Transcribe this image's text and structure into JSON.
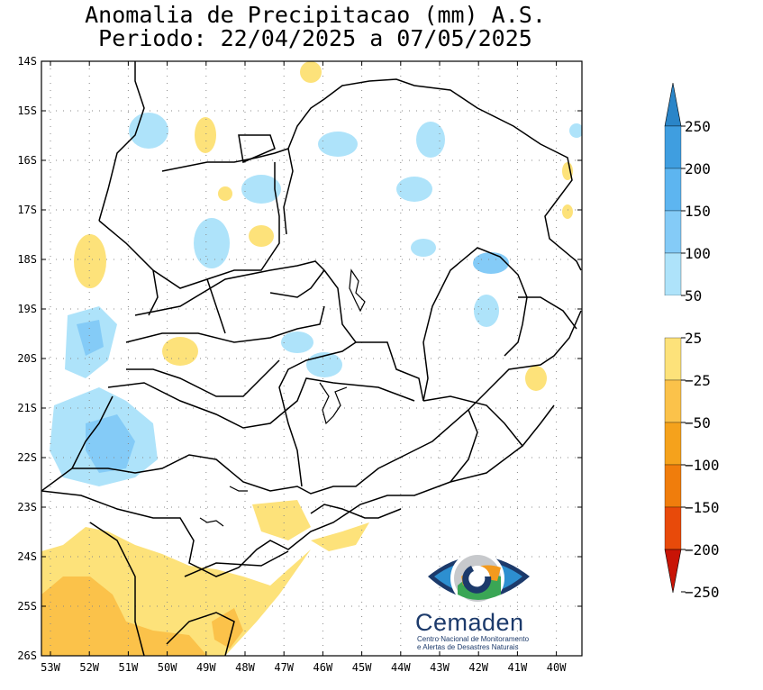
{
  "title_line1": "Anomalia de Precipitacao (mm) A.S.",
  "title_line2": "Periodo: 22/04/2025 a 07/05/2025",
  "lat_ticks": [
    "14S",
    "15S",
    "16S",
    "17S",
    "18S",
    "19S",
    "20S",
    "21S",
    "22S",
    "23S",
    "24S",
    "25S",
    "26S"
  ],
  "lon_ticks": [
    "53W",
    "52W",
    "51W",
    "50W",
    "49W",
    "48W",
    "47W",
    "46W",
    "45W",
    "44W",
    "43W",
    "42W",
    "41W",
    "40W"
  ],
  "colorbar": {
    "labels": [
      "250",
      "200",
      "150",
      "100",
      "50",
      "25",
      "−25",
      "−50",
      "−100",
      "−150",
      "−200",
      "−250"
    ],
    "colors": [
      "#2a85c8",
      "#3f9ee0",
      "#5db5f0",
      "#84cbf7",
      "#aee3fa",
      "#ffffff",
      "#fde27a",
      "#fbc24a",
      "#f5a21c",
      "#f07d0c",
      "#e84a0a",
      "#c81406"
    ]
  },
  "logo": {
    "name": "Cemaden",
    "subtitle_line1": "Centro Nacional de Monitoramento",
    "subtitle_line2": "e Alertas de Desastres Naturais"
  }
}
